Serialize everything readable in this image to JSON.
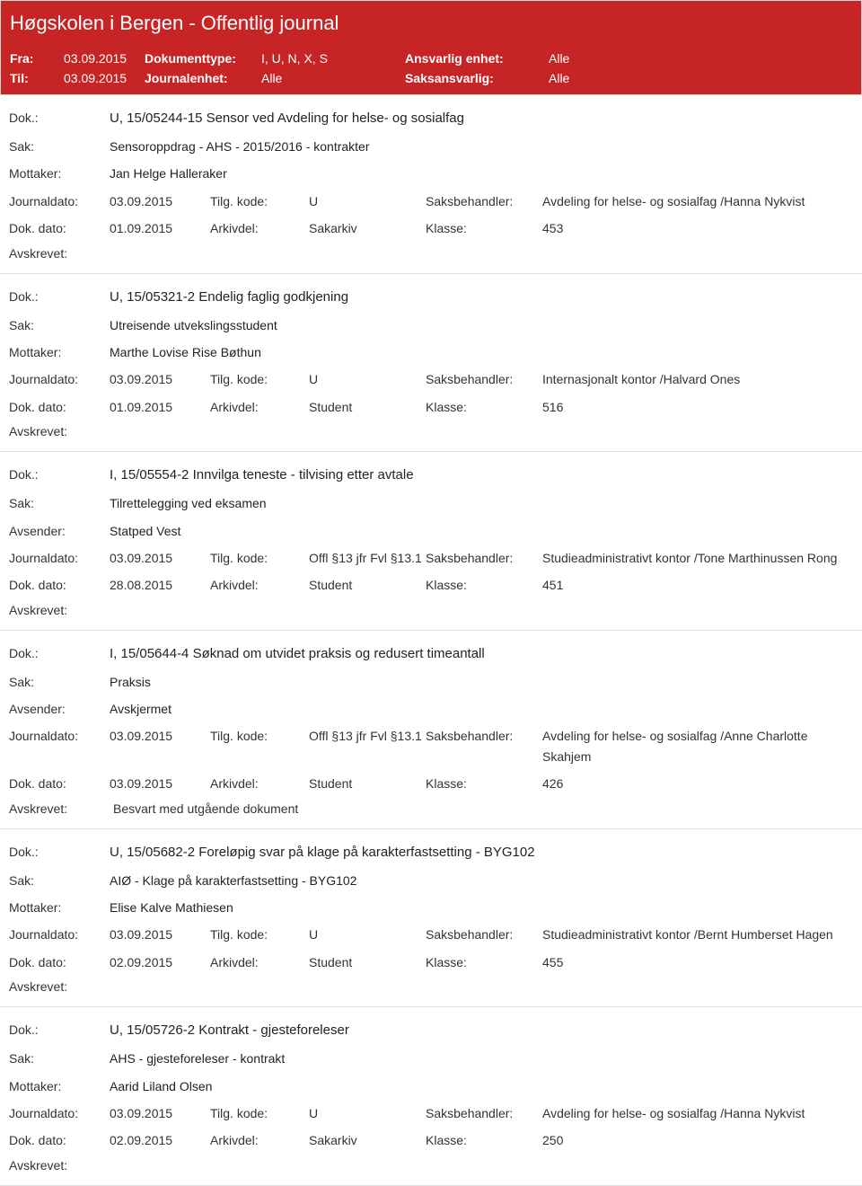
{
  "colors": {
    "header_bg": "#c72525",
    "header_text": "#ffffff",
    "border": "#e0e0e0",
    "text": "#333333"
  },
  "header": {
    "title": "Høgskolen i Bergen - Offentlig journal",
    "fra_label": "Fra:",
    "fra_value": "03.09.2015",
    "til_label": "Til:",
    "til_value": "03.09.2015",
    "doktype_label": "Dokumenttype:",
    "doktype_value": "I, U, N, X, S",
    "journalenhet_label": "Journalenhet:",
    "journalenhet_value": "Alle",
    "ansvarlig_label": "Ansvarlig enhet:",
    "ansvarlig_value": "Alle",
    "saksansvarlig_label": "Saksansvarlig:",
    "saksansvarlig_value": "Alle"
  },
  "labels": {
    "dok": "Dok.:",
    "sak": "Sak:",
    "mottaker": "Mottaker:",
    "avsender": "Avsender:",
    "journaldato": "Journaldato:",
    "dokdato": "Dok. dato:",
    "tilgkode": "Tilg. kode:",
    "arkivdel": "Arkivdel:",
    "saksbehandler": "Saksbehandler:",
    "klasse": "Klasse:",
    "avskrevet": "Avskrevet:"
  },
  "entries": [
    {
      "dok": "U, 15/05244-15 Sensor ved Avdeling for helse- og sosialfag",
      "sak": "Sensoroppdrag - AHS - 2015/2016 - kontrakter",
      "party_label": "Mottaker:",
      "party": "Jan Helge Halleraker",
      "journaldato": "03.09.2015",
      "tilgkode": "U",
      "saksbehandler": "Avdeling for helse- og sosialfag /Hanna Nykvist",
      "dokdato": "01.09.2015",
      "arkivdel": "Sakarkiv",
      "klasse": "453",
      "avskrevet": ""
    },
    {
      "dok": "U, 15/05321-2 Endelig faglig godkjening",
      "sak": "Utreisende utvekslingsstudent",
      "party_label": "Mottaker:",
      "party": "Marthe Lovise Rise Bøthun",
      "journaldato": "03.09.2015",
      "tilgkode": "U",
      "saksbehandler": "Internasjonalt kontor /Halvard Ones",
      "dokdato": "01.09.2015",
      "arkivdel": "Student",
      "klasse": "516",
      "avskrevet": ""
    },
    {
      "dok": "I, 15/05554-2 Innvilga teneste - tilvising etter avtale",
      "sak": "Tilrettelegging ved eksamen",
      "party_label": "Avsender:",
      "party": "Statped Vest",
      "journaldato": "03.09.2015",
      "tilgkode": "Offl §13 jfr Fvl §13.1",
      "saksbehandler": "Studieadministrativt kontor /Tone Marthinussen Rong",
      "dokdato": "28.08.2015",
      "arkivdel": "Student",
      "klasse": "451",
      "avskrevet": ""
    },
    {
      "dok": "I, 15/05644-4 Søknad om utvidet praksis og redusert timeantall",
      "sak": "Praksis",
      "party_label": "Avsender:",
      "party": "Avskjermet",
      "journaldato": "03.09.2015",
      "tilgkode": "Offl §13 jfr Fvl §13.1",
      "saksbehandler": "Avdeling for helse- og sosialfag /Anne Charlotte Skahjem",
      "dokdato": "03.09.2015",
      "arkivdel": "Student",
      "klasse": "426",
      "avskrevet": "Besvart med utgående dokument"
    },
    {
      "dok": "U, 15/05682-2 Foreløpig svar på klage på karakterfastsetting - BYG102",
      "sak": "AIØ - Klage på karakterfastsetting - BYG102",
      "party_label": "Mottaker:",
      "party": "Elise Kalve Mathiesen",
      "journaldato": "03.09.2015",
      "tilgkode": "U",
      "saksbehandler": "Studieadministrativt kontor /Bernt Humberset Hagen",
      "dokdato": "02.09.2015",
      "arkivdel": "Student",
      "klasse": "455",
      "avskrevet": ""
    },
    {
      "dok": "U, 15/05726-2 Kontrakt - gjesteforeleser",
      "sak": "AHS - gjesteforeleser - kontrakt",
      "party_label": "Mottaker:",
      "party": "Aarid Liland Olsen",
      "journaldato": "03.09.2015",
      "tilgkode": "U",
      "saksbehandler": "Avdeling for helse- og sosialfag /Hanna Nykvist",
      "dokdato": "02.09.2015",
      "arkivdel": "Sakarkiv",
      "klasse": "250",
      "avskrevet": ""
    }
  ]
}
